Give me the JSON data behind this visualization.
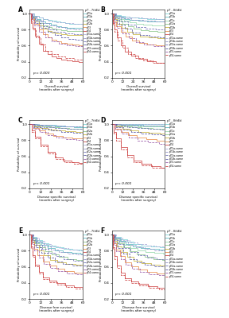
{
  "panels": [
    {
      "label": "A",
      "title": "pT - 7thEd",
      "xlabel": "Overall survival (months after surgery)",
      "ylabel": "Probability of survival",
      "pval": "p = 0.003"
    },
    {
      "label": "B",
      "title": "pT - 8thEd",
      "xlabel": "Overall survival (months after surgery)",
      "ylabel": "Probability of survival",
      "pval": "p < 0.001"
    },
    {
      "label": "C",
      "title": "pT - 7thEd",
      "xlabel": "Disease specific survival (months after surgery)",
      "ylabel": "Probability of survival",
      "pval": "p < 0.001"
    },
    {
      "label": "D",
      "title": "pT - 8thEd",
      "xlabel": "Disease specific survival (months after surgery)",
      "ylabel": "Probability of survival",
      "pval": "p < 0.001"
    },
    {
      "label": "E",
      "title": "pT - 7thEd",
      "xlabel": "Disease free survival (months after surgery)",
      "ylabel": "Probability of survival",
      "pval": "p < 0.001"
    },
    {
      "label": "F",
      "title": "pT - 8thEd",
      "xlabel": "Disease free survival (months after surgery)",
      "ylabel": "Probability of survival",
      "pval": "p < 0.001"
    }
  ],
  "legend_7th": [
    "pT1a",
    "pT1b",
    "pT2a",
    "pT2b",
    "pT3",
    "pT4",
    "pT1a-same",
    "pT1b-same",
    "pT2a-same",
    "pT2b-same",
    "pT3-same",
    "pT4-same"
  ],
  "legend_8th": [
    "pT1a",
    "pT1b",
    "pT1c",
    "pT2a",
    "pT2b",
    "pT3",
    "pT4",
    "pT1a-same",
    "pT1b-same",
    "pT2a-same",
    "pT2b-same",
    "pT3-same",
    "pT4-same"
  ],
  "colors_7th": [
    "#7dd4d8",
    "#5ab8c0",
    "#8bc88a",
    "#c8b43c",
    "#e8904c",
    "#d04848",
    "#a8a8d8",
    "#9090c8",
    "#7070b8",
    "#5858a8",
    "#9858a8",
    "#cc4040"
  ],
  "colors_8th": [
    "#7dd4d8",
    "#5ab8c0",
    "#96d8ac",
    "#8bc88a",
    "#c8b43c",
    "#e8904c",
    "#d04848",
    "#a8a8d8",
    "#9090c8",
    "#7070b8",
    "#5858a8",
    "#9858a8",
    "#cc4040"
  ],
  "xlim": [
    0,
    60
  ],
  "ylim": [
    0.2,
    1.05
  ],
  "xticks": [
    0,
    12,
    24,
    36,
    48,
    60
  ],
  "yticks": [
    0.2,
    0.4,
    0.6,
    0.8,
    1.0
  ]
}
